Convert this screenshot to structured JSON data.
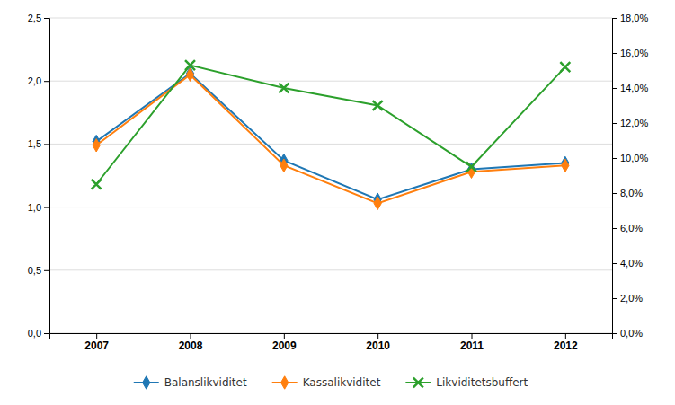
{
  "chart_data": {
    "type": "line",
    "categories": [
      "2007",
      "2008",
      "2009",
      "2010",
      "2011",
      "2012"
    ],
    "series": [
      {
        "name": "Balanslikviditet",
        "values": [
          1.52,
          2.06,
          1.37,
          1.06,
          1.3,
          1.35
        ],
        "marker": "diamond"
      },
      {
        "name": "Kassalikviditet",
        "values": [
          1.49,
          2.05,
          1.33,
          1.03,
          1.28,
          1.33
        ],
        "marker": "diamond"
      },
      {
        "name": "Likviditetsbuffert",
        "values": [
          0.085,
          0.153,
          0.14,
          0.13,
          0.095,
          0.152
        ],
        "axis": "y2",
        "marker": "x"
      }
    ],
    "ylim": [
      0.0,
      2.5
    ],
    "yticks": [
      {
        "value": 0.0,
        "label": "0,0"
      },
      {
        "value": 0.5,
        "label": "0,5"
      },
      {
        "value": 1.0,
        "label": "1,0"
      },
      {
        "value": 1.5,
        "label": "1,5"
      },
      {
        "value": 2.0,
        "label": "2,0"
      },
      {
        "value": 2.5,
        "label": "2,5"
      }
    ],
    "y2lim": [
      0.0,
      0.18
    ],
    "y2ticks": [
      {
        "value": 0.0,
        "label": "0,0%"
      },
      {
        "value": 0.02,
        "label": "2,0%"
      },
      {
        "value": 0.04,
        "label": "4,0%"
      },
      {
        "value": 0.06,
        "label": "6,0%"
      },
      {
        "value": 0.08,
        "label": "8,0%"
      },
      {
        "value": 0.1,
        "label": "10,0%"
      },
      {
        "value": 0.12,
        "label": "12,0%"
      },
      {
        "value": 0.14,
        "label": "14,0%"
      },
      {
        "value": 0.16,
        "label": "16,0%"
      },
      {
        "value": 0.18,
        "label": "18,0%"
      }
    ],
    "grid": true,
    "legend": "bottom"
  }
}
